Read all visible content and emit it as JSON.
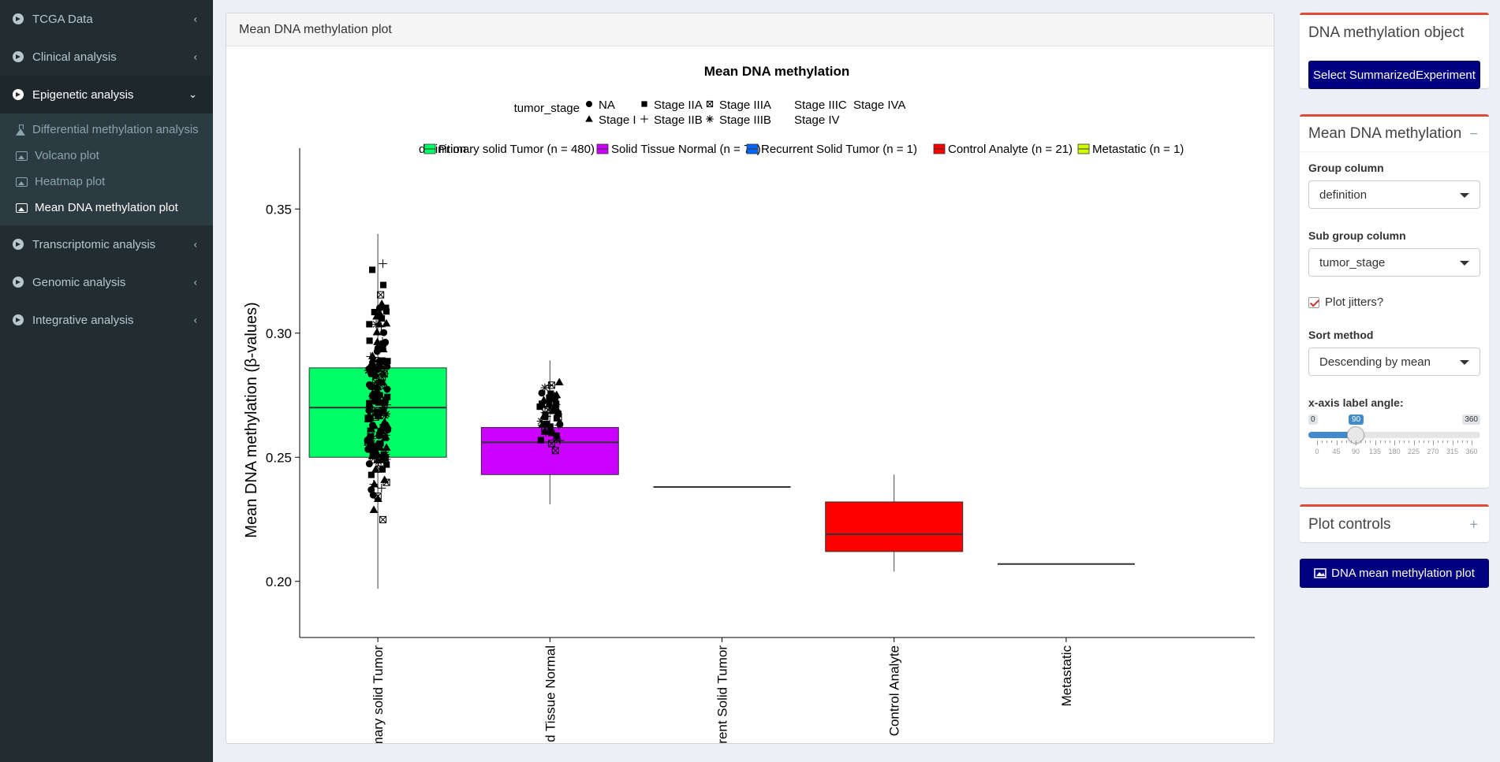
{
  "sidebar": {
    "items": [
      {
        "label": "TCGA Data",
        "caret": "‹"
      },
      {
        "label": "Clinical analysis",
        "caret": "‹"
      },
      {
        "label": "Epigenetic analysis",
        "caret": "⌄"
      },
      {
        "label": "Transcriptomic analysis",
        "caret": "‹"
      },
      {
        "label": "Genomic analysis",
        "caret": "‹"
      },
      {
        "label": "Integrative analysis",
        "caret": "‹"
      }
    ],
    "epigenetic_subitems": [
      {
        "label": "Differential methylation analysis",
        "icon": "flask-icon"
      },
      {
        "label": "Volcano plot",
        "icon": "image-icon"
      },
      {
        "label": "Heatmap plot",
        "icon": "image-icon"
      },
      {
        "label": "Mean DNA methylation plot",
        "icon": "image-icon"
      }
    ]
  },
  "main": {
    "box_title": "Mean DNA methylation plot"
  },
  "chart_data": {
    "type": "box",
    "title": "Mean DNA methylation",
    "ylabel": "Mean DNA methylation (β-values)",
    "xlabel": "",
    "ylim": [
      0.185,
      0.365
    ],
    "yticks": [
      "0.20",
      "0.25",
      "0.30",
      "0.35"
    ],
    "ytick_values": [
      0.2,
      0.25,
      0.3,
      0.35
    ],
    "x_label_angle": 90,
    "fill_legend_title": "definition",
    "shape_legend_title": "tumor_stage",
    "shape_legend": [
      {
        "label": "NA",
        "shape": "circle"
      },
      {
        "label": "Stage I",
        "shape": "triangle"
      },
      {
        "label": "Stage IIA",
        "shape": "square"
      },
      {
        "label": "Stage IIB",
        "shape": "plus"
      },
      {
        "label": "Stage IIIA",
        "shape": "boxed-x"
      },
      {
        "label": "Stage IIIB",
        "shape": "asterisk"
      },
      {
        "label": "Stage IIIC",
        "shape": "none"
      },
      {
        "label": "Stage IV",
        "shape": "none"
      },
      {
        "label": "Stage IVA",
        "shape": "none"
      }
    ],
    "series": [
      {
        "name": "Primary solid Tumor (n = 480)",
        "category": "Primary solid Tumor",
        "color": "#00ff66",
        "q1": 0.25,
        "median": 0.27,
        "q3": 0.286,
        "whisker_low": 0.197,
        "whisker_high": 0.34
      },
      {
        "name": "Solid Tissue Normal (n = 75)",
        "category": "Solid Tissue Normal",
        "color": "#cc00ff",
        "q1": 0.243,
        "median": 0.256,
        "q3": 0.262,
        "whisker_low": 0.231,
        "whisker_high": 0.289
      },
      {
        "name": "Recurrent Solid Tumor (n = 1)",
        "category": "Recurrent Solid Tumor",
        "color": "#0066ff",
        "q1": 0.238,
        "median": 0.238,
        "q3": 0.238,
        "whisker_low": 0.238,
        "whisker_high": 0.238
      },
      {
        "name": "Control Analyte (n = 21)",
        "category": "Control Analyte",
        "color": "#ff0000",
        "q1": 0.212,
        "median": 0.219,
        "q3": 0.232,
        "whisker_low": 0.204,
        "whisker_high": 0.243
      },
      {
        "name": "Metastatic (n = 1)",
        "category": "Metastatic",
        "color": "#ccff00",
        "q1": 0.207,
        "median": 0.207,
        "q3": 0.207,
        "whisker_low": 0.207,
        "whisker_high": 0.207
      }
    ],
    "jitter_groups": [
      0,
      1
    ]
  },
  "right_panel": {
    "object_box": {
      "title": "DNA methylation object",
      "button_label": "Select SummarizedExperiment"
    },
    "mean_box": {
      "title": "Mean DNA methylation",
      "tool": "−",
      "group_column_label": "Group column",
      "group_column_value": "definition",
      "sub_group_label": "Sub group column",
      "sub_group_value": "tumor_stage",
      "jitter_label": "Plot jitters?",
      "sort_label": "Sort method",
      "sort_value": "Descending by mean",
      "angle_label": "x-axis label angle:",
      "angle_min": "0",
      "angle_max": "360",
      "angle_value": "90",
      "angle_fraction": 0.25,
      "angle_ticks": [
        "0",
        "45",
        "90",
        "135",
        "180",
        "225",
        "270",
        "315",
        "360"
      ]
    },
    "controls_box": {
      "title": "Plot controls",
      "tool": "+"
    },
    "plot_button_label": "DNA mean methylation plot"
  }
}
